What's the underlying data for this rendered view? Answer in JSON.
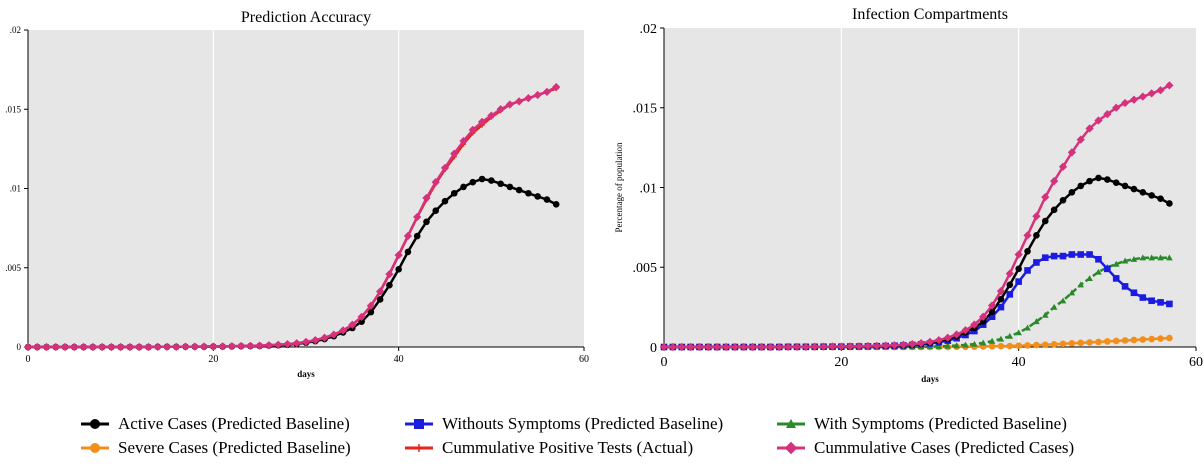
{
  "chart_data": [
    {
      "type": "line",
      "title": "Prediction Accuracy",
      "xlabel": "days",
      "ylabel": "",
      "xlim": [
        0,
        60
      ],
      "ylim": [
        0,
        0.02
      ],
      "xticks": [
        "0",
        "20",
        "40",
        "60"
      ],
      "yticks": [
        "0",
        ".005",
        ".01",
        ".015",
        ".02"
      ],
      "grid": true,
      "x": [
        0,
        1,
        2,
        3,
        4,
        5,
        6,
        7,
        8,
        9,
        10,
        11,
        12,
        13,
        14,
        15,
        16,
        17,
        18,
        19,
        20,
        21,
        22,
        23,
        24,
        25,
        26,
        27,
        28,
        29,
        30,
        31,
        32,
        33,
        34,
        35,
        36,
        37,
        38,
        39,
        40,
        41,
        42,
        43,
        44,
        45,
        46,
        47,
        48,
        49,
        50,
        51,
        52,
        53,
        54,
        55,
        56,
        57
      ],
      "series": [
        {
          "name": "Active Cases (Predicted Baseline)",
          "color": "#000000",
          "marker": "circle",
          "values": [
            0,
            0,
            0,
            0,
            0,
            0,
            0,
            0,
            0,
            0,
            0,
            0,
            0,
            0,
            1e-05,
            1e-05,
            1e-05,
            2e-05,
            2e-05,
            2e-05,
            3e-05,
            3e-05,
            4e-05,
            5e-05,
            6e-05,
            7e-05,
            9e-05,
            0.00011,
            0.00014,
            0.0002,
            0.00027,
            0.00037,
            0.0005,
            0.00068,
            0.00092,
            0.0012,
            0.0016,
            0.0022,
            0.003,
            0.0039,
            0.0049,
            0.006,
            0.007,
            0.0079,
            0.0086,
            0.0092,
            0.0097,
            0.0101,
            0.0104,
            0.0106,
            0.0105,
            0.0103,
            0.0101,
            0.0099,
            0.0097,
            0.0095,
            0.0093,
            0.009
          ]
        },
        {
          "name": "Cummulative Positive Tests (Actual)",
          "color": "#e8241a",
          "marker": "plus",
          "values": [
            0,
            0,
            0,
            0,
            0,
            0,
            0,
            0,
            0,
            0,
            0,
            0,
            0,
            0,
            1e-05,
            1e-05,
            1e-05,
            2e-05,
            2e-05,
            3e-05,
            3e-05,
            4e-05,
            5e-05,
            6e-05,
            7e-05,
            9e-05,
            0.00011,
            0.00014,
            0.00018,
            0.00024,
            0.00032,
            0.00043,
            0.00058,
            0.00078,
            0.00105,
            0.0014,
            0.0019,
            0.0026,
            0.0035,
            0.0046,
            0.0058,
            0.007,
            0.0082,
            0.0093,
            0.0103,
            0.0112,
            0.012,
            0.0128,
            0.0135,
            0.014,
            0.0145,
            0.0149,
            0.0153,
            0.0155,
            0.0157,
            0.0159,
            0.0161,
            0.0163
          ]
        },
        {
          "name": "Cummulative Cases (Predicted Cases)",
          "color": "#d6317c",
          "marker": "diamond",
          "values": [
            0,
            0,
            0,
            0,
            0,
            0,
            0,
            0,
            0,
            0,
            0,
            0,
            0,
            0,
            1e-05,
            1e-05,
            1e-05,
            2e-05,
            2e-05,
            3e-05,
            3e-05,
            4e-05,
            5e-05,
            6e-05,
            7e-05,
            9e-05,
            0.00011,
            0.00014,
            0.00018,
            0.00024,
            0.00032,
            0.00043,
            0.00058,
            0.00078,
            0.00105,
            0.0014,
            0.0019,
            0.0026,
            0.0035,
            0.0046,
            0.0058,
            0.007,
            0.0082,
            0.0094,
            0.0104,
            0.0113,
            0.0122,
            0.013,
            0.0137,
            0.0142,
            0.0146,
            0.015,
            0.0153,
            0.0155,
            0.0157,
            0.0159,
            0.0161,
            0.0164
          ]
        }
      ]
    },
    {
      "type": "line",
      "title": "Infection Compartments",
      "xlabel": "days",
      "ylabel": "Percentage of population",
      "xlim": [
        0,
        60
      ],
      "ylim": [
        0,
        0.02
      ],
      "xticks": [
        "0",
        "20",
        "40",
        "60"
      ],
      "yticks": [
        "0",
        ".005",
        ".01",
        ".015",
        ".02"
      ],
      "grid": true,
      "x": [
        0,
        1,
        2,
        3,
        4,
        5,
        6,
        7,
        8,
        9,
        10,
        11,
        12,
        13,
        14,
        15,
        16,
        17,
        18,
        19,
        20,
        21,
        22,
        23,
        24,
        25,
        26,
        27,
        28,
        29,
        30,
        31,
        32,
        33,
        34,
        35,
        36,
        37,
        38,
        39,
        40,
        41,
        42,
        43,
        44,
        45,
        46,
        47,
        48,
        49,
        50,
        51,
        52,
        53,
        54,
        55,
        56,
        57
      ],
      "series": [
        {
          "name": "Severe Cases (Predicted Baseline)",
          "color": "#f28e1c",
          "marker": "circle",
          "values": [
            0,
            0,
            0,
            0,
            0,
            0,
            0,
            0,
            0,
            0,
            0,
            0,
            0,
            0,
            0,
            0,
            0,
            0,
            0,
            0,
            0,
            0,
            0,
            0,
            0,
            0,
            0,
            0,
            0,
            0,
            0,
            0,
            0,
            1e-05,
            1e-05,
            2e-05,
            3e-05,
            4e-05,
            5e-05,
            6e-05,
            8e-05,
            0.0001,
            0.00012,
            0.00014,
            0.00017,
            0.0002,
            0.00023,
            0.00026,
            0.00029,
            0.00032,
            0.00035,
            0.00038,
            0.00041,
            0.00044,
            0.00047,
            0.0005,
            0.00053,
            0.00056
          ]
        },
        {
          "name": "With Symptoms (Predicted Baseline)",
          "color": "#2a8a2a",
          "marker": "triangle",
          "values": [
            0,
            0,
            0,
            0,
            0,
            0,
            0,
            0,
            0,
            0,
            0,
            0,
            0,
            0,
            0,
            0,
            0,
            0,
            0,
            0,
            0,
            0,
            0,
            0,
            0,
            0,
            0,
            0,
            1e-05,
            2e-05,
            3e-05,
            4e-05,
            6e-05,
            9e-05,
            0.00013,
            0.00018,
            0.00026,
            0.00037,
            0.0005,
            0.00068,
            0.0009,
            0.0012,
            0.0016,
            0.002,
            0.0025,
            0.0029,
            0.0034,
            0.0039,
            0.0043,
            0.0047,
            0.005,
            0.0052,
            0.0054,
            0.0055,
            0.0056,
            0.0056,
            0.0056,
            0.0056
          ]
        },
        {
          "name": "Withouts Symptoms (Predicted Baseline)",
          "color": "#1c1ce0",
          "marker": "square",
          "values": [
            0,
            0,
            0,
            0,
            0,
            0,
            0,
            0,
            0,
            0,
            0,
            0,
            0,
            0,
            1e-05,
            1e-05,
            1e-05,
            1e-05,
            2e-05,
            2e-05,
            2e-05,
            3e-05,
            3e-05,
            4e-05,
            5e-05,
            6e-05,
            8e-05,
            0.0001,
            0.00013,
            0.00017,
            0.00022,
            0.0003,
            0.0004,
            0.00055,
            0.00075,
            0.001,
            0.0014,
            0.0019,
            0.0025,
            0.0033,
            0.0041,
            0.0048,
            0.0053,
            0.0056,
            0.0057,
            0.0057,
            0.0058,
            0.0058,
            0.0058,
            0.0055,
            0.0049,
            0.0043,
            0.0038,
            0.0034,
            0.0031,
            0.0029,
            0.0028,
            0.0027
          ]
        },
        {
          "name": "Active Cases (Predicted Baseline)",
          "color": "#000000",
          "marker": "circle",
          "values": [
            0,
            0,
            0,
            0,
            0,
            0,
            0,
            0,
            0,
            0,
            0,
            0,
            0,
            0,
            1e-05,
            1e-05,
            1e-05,
            2e-05,
            2e-05,
            2e-05,
            3e-05,
            3e-05,
            4e-05,
            5e-05,
            6e-05,
            7e-05,
            9e-05,
            0.00011,
            0.00014,
            0.0002,
            0.00027,
            0.00037,
            0.0005,
            0.00068,
            0.00092,
            0.0012,
            0.0016,
            0.0022,
            0.003,
            0.0039,
            0.0049,
            0.006,
            0.007,
            0.0079,
            0.0086,
            0.0092,
            0.0097,
            0.0101,
            0.0104,
            0.0106,
            0.0105,
            0.0103,
            0.0101,
            0.0099,
            0.0097,
            0.0095,
            0.0093,
            0.009
          ]
        },
        {
          "name": "Cummulative Cases (Predicted Cases)",
          "color": "#d6317c",
          "marker": "diamond",
          "values": [
            0,
            0,
            0,
            0,
            0,
            0,
            0,
            0,
            0,
            0,
            0,
            0,
            0,
            0,
            1e-05,
            1e-05,
            1e-05,
            2e-05,
            2e-05,
            3e-05,
            3e-05,
            4e-05,
            5e-05,
            6e-05,
            7e-05,
            9e-05,
            0.00011,
            0.00014,
            0.00018,
            0.00024,
            0.00032,
            0.00043,
            0.00058,
            0.00078,
            0.00105,
            0.0014,
            0.0019,
            0.0026,
            0.0035,
            0.0046,
            0.0058,
            0.007,
            0.0082,
            0.0094,
            0.0104,
            0.0113,
            0.0122,
            0.013,
            0.0137,
            0.0142,
            0.0146,
            0.015,
            0.0153,
            0.0155,
            0.0157,
            0.0159,
            0.0161,
            0.0164
          ]
        }
      ]
    }
  ],
  "legend": {
    "placement": "bottom",
    "rows": [
      [
        {
          "label": "Active Cases (Predicted Baseline)",
          "color": "#000000",
          "marker": "circle"
        },
        {
          "label": "Withouts Symptoms (Predicted Baseline)",
          "color": "#1c1ce0",
          "marker": "square"
        },
        {
          "label": "With Symptoms (Predicted Baseline)",
          "color": "#2a8a2a",
          "marker": "triangle"
        }
      ],
      [
        {
          "label": "Severe Cases (Predicted Baseline)",
          "color": "#f28e1c",
          "marker": "circle"
        },
        {
          "label": "Cummulative Positive Tests (Actual)",
          "color": "#e8241a",
          "marker": "plus"
        },
        {
          "label": "Cummulative Cases (Predicted Cases)",
          "color": "#d6317c",
          "marker": "diamond"
        }
      ]
    ]
  }
}
